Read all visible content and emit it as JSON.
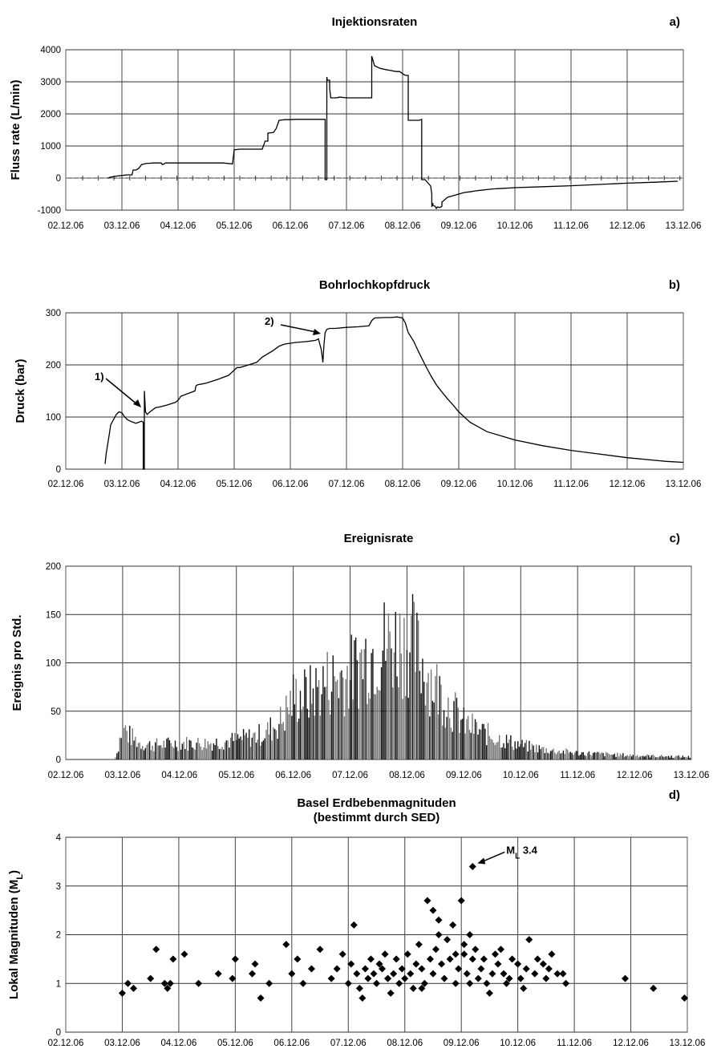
{
  "chart_data": [
    {
      "type": "line",
      "panel_letter": "a)",
      "title": "Injektionsraten",
      "ylabel": "Fluss rate (L/min)",
      "xlabel": "",
      "x_unit": "days after 02.12.06 00:00 (ticks = dates)",
      "xticks": [
        "02.12.06",
        "03.12.06",
        "04.12.06",
        "05.12.06",
        "06.12.06",
        "07.12.06",
        "08.12.06",
        "09.12.06",
        "10.12.06",
        "11.12.06",
        "12.12.06",
        "13.12.06"
      ],
      "xlim": [
        0,
        11
      ],
      "ylim": [
        -1000,
        4000
      ],
      "yticks": [
        4000,
        3000,
        2000,
        1000,
        0,
        -1000
      ],
      "ytick_labels": [
        "4000",
        "3000",
        "2000",
        "1000",
        "0",
        "-1000"
      ],
      "grid": true,
      "series": [
        {
          "x": [
            0.75,
            0.8,
            0.9,
            1.0,
            1.1,
            1.18,
            1.2,
            1.25,
            1.3,
            1.35,
            1.4,
            1.45,
            1.5,
            1.55,
            1.6,
            1.65,
            1.7,
            1.72,
            1.75,
            1.78,
            1.8,
            1.85,
            2.0,
            2.2,
            2.4,
            2.6,
            2.8,
            2.97,
            3.0,
            3.1,
            3.3,
            3.5,
            3.55,
            3.6,
            3.6,
            3.7,
            3.75,
            3.8,
            3.85,
            3.9,
            3.95,
            4.0,
            4.1,
            4.3,
            4.5,
            4.62,
            4.62,
            4.65,
            4.65,
            4.66,
            4.7,
            4.7,
            4.72,
            4.8,
            4.84,
            4.86,
            4.86,
            4.9,
            5.0,
            5.2,
            5.4,
            5.45,
            5.45,
            5.5,
            5.6,
            5.7,
            5.8,
            5.85,
            5.9,
            5.95,
            6.0,
            6.05,
            6.1,
            6.1,
            6.2,
            6.3,
            6.34,
            6.34,
            6.4,
            6.5,
            6.52,
            6.52,
            6.54,
            6.54,
            6.58,
            6.6,
            6.62,
            6.66,
            6.7,
            6.7,
            6.8,
            6.9,
            7.0,
            7.1,
            7.2,
            7.3,
            7.4,
            7.5,
            7.6,
            7.8,
            8.0,
            8.5,
            9.0,
            9.5,
            10.0,
            10.5,
            10.9
          ],
          "y": [
            0,
            30,
            60,
            80,
            100,
            100,
            250,
            250,
            300,
            420,
            440,
            460,
            460,
            470,
            470,
            470,
            470,
            420,
            440,
            470,
            470,
            470,
            470,
            470,
            470,
            470,
            470,
            440,
            880,
            900,
            900,
            900,
            1150,
            1150,
            1400,
            1420,
            1550,
            1800,
            1810,
            1820,
            1820,
            1820,
            1830,
            1830,
            1830,
            1830,
            -50,
            -50,
            3150,
            3050,
            3050,
            2800,
            2500,
            2500,
            2510,
            2510,
            2520,
            2520,
            2500,
            2500,
            2500,
            2500,
            3800,
            3500,
            3420,
            3380,
            3350,
            3330,
            3320,
            3320,
            3250,
            3200,
            3200,
            1800,
            1800,
            1800,
            1830,
            -50,
            -50,
            -250,
            -500,
            -900,
            -780,
            -850,
            -880,
            -950,
            -900,
            -920,
            -880,
            -750,
            -600,
            -550,
            -500,
            -450,
            -430,
            -400,
            -380,
            -360,
            -340,
            -320,
            -300,
            -270,
            -240,
            -200,
            -160,
            -130,
            -100
          ]
        }
      ]
    },
    {
      "type": "line",
      "panel_letter": "b)",
      "title": "Bohrlochkopfdruck",
      "ylabel": "Druck  (bar)",
      "xlabel": "",
      "x_unit": "days after 02.12.06 00:00 (ticks = dates)",
      "xticks": [
        "02.12.06",
        "03.12.06",
        "04.12.06",
        "05.12.06",
        "06.12.06",
        "07.12.06",
        "08.12.06",
        "09.12.06",
        "10.12.06",
        "11.12.06",
        "12.12.06",
        "13.12.06"
      ],
      "xlim": [
        0,
        11
      ],
      "ylim": [
        0,
        300
      ],
      "yticks": [
        300,
        200,
        100,
        0
      ],
      "ytick_labels": [
        "300",
        "200",
        "100",
        "0"
      ],
      "grid": true,
      "annotations": [
        "1)",
        "2)"
      ],
      "series": [
        {
          "x": [
            0.7,
            0.72,
            0.75,
            0.78,
            0.8,
            0.85,
            0.9,
            0.95,
            1.0,
            1.05,
            1.1,
            1.15,
            1.2,
            1.25,
            1.3,
            1.35,
            1.38,
            1.38,
            1.4,
            1.4,
            1.42,
            1.45,
            1.5,
            1.6,
            1.7,
            1.8,
            1.95,
            2.0,
            2.05,
            2.3,
            2.32,
            2.35,
            2.5,
            2.7,
            2.9,
            2.95,
            3.0,
            3.05,
            3.1,
            3.2,
            3.4,
            3.5,
            3.7,
            3.8,
            3.9,
            4.1,
            4.3,
            4.45,
            4.5,
            4.55,
            4.58,
            4.6,
            4.62,
            4.65,
            4.7,
            4.8,
            5.0,
            5.2,
            5.4,
            5.45,
            5.5,
            5.7,
            5.8,
            5.9,
            6.0,
            6.05,
            6.1,
            6.2,
            6.25,
            6.3,
            6.4,
            6.5,
            6.6,
            6.7,
            6.8,
            6.9,
            7.0,
            7.2,
            7.5,
            8.0,
            8.5,
            9.0,
            9.5,
            10.0,
            10.5,
            10.7,
            11.0
          ],
          "y": [
            10,
            30,
            50,
            70,
            85,
            95,
            105,
            110,
            108,
            100,
            95,
            92,
            90,
            88,
            90,
            92,
            90,
            0,
            0,
            150,
            110,
            105,
            110,
            118,
            120,
            123,
            128,
            132,
            140,
            150,
            160,
            162,
            165,
            172,
            180,
            185,
            190,
            195,
            195,
            198,
            205,
            215,
            228,
            236,
            240,
            243,
            245,
            247,
            250,
            230,
            205,
            240,
            262,
            268,
            270,
            270,
            272,
            273,
            275,
            285,
            290,
            291,
            291,
            292,
            290,
            280,
            262,
            245,
            233,
            222,
            200,
            180,
            162,
            148,
            135,
            123,
            110,
            90,
            72,
            56,
            45,
            36,
            29,
            22,
            17,
            15,
            13
          ]
        }
      ]
    },
    {
      "type": "bar",
      "panel_letter": "c)",
      "title": "Ereignisrate",
      "ylabel": "Ereignis pro Std.",
      "xlabel": "",
      "x_unit": "days after 02.12.06 00:00 (ticks = dates)",
      "xticks": [
        "02.12.06",
        "03.12.06",
        "04.12.06",
        "05.12.06",
        "06.12.06",
        "07.12.06",
        "08.12.06",
        "09.12.06",
        "10.12.06",
        "11.12.06",
        "12.12.06",
        "13.12.06"
      ],
      "xlim": [
        0,
        11
      ],
      "ylim": [
        0,
        200
      ],
      "yticks": [
        200,
        150,
        100,
        50,
        0
      ],
      "ytick_labels": [
        "200",
        "150",
        "100",
        "50",
        "0"
      ],
      "grid": true,
      "envelope": {
        "x": [
          0.85,
          0.9,
          1.0,
          1.1,
          1.3,
          1.5,
          2.0,
          2.5,
          3.0,
          3.3,
          3.5,
          3.8,
          4.0,
          4.3,
          4.6,
          5.0,
          5.3,
          5.6,
          5.9,
          6.1,
          6.3,
          6.6,
          7.0,
          7.5,
          8.0,
          8.5,
          9.0,
          9.5,
          10.0,
          10.5,
          11.0
        ],
        "y": [
          0,
          10,
          52,
          38,
          25,
          22,
          25,
          25,
          30,
          35,
          40,
          60,
          95,
          100,
          120,
          130,
          160,
          175,
          180,
          175,
          140,
          100,
          55,
          35,
          22,
          14,
          10,
          8,
          6,
          5,
          4
        ]
      }
    },
    {
      "type": "scatter",
      "panel_letter": "d)",
      "title": "Basel Erdbebenmagnituden",
      "subtitle": "(bestimmt durch SED)",
      "ylabel": "Lokal Magnituden (M",
      "ylabel_sub": "L",
      "ylabel_end": ")",
      "xlabel": "",
      "x_unit": "days after 02.12.06 00:00 (ticks = dates)",
      "xticks": [
        "02.12.06",
        "03.12.06",
        "04.12.06",
        "05.12.06",
        "06.12.06",
        "07.12.06",
        "08.12.06",
        "09.12.06",
        "10.12.06",
        "11.12.06",
        "12.12.06",
        "13.12.06"
      ],
      "xlim": [
        0,
        11
      ],
      "ylim": [
        0,
        4
      ],
      "yticks": [
        4,
        3,
        2,
        1,
        0
      ],
      "ytick_labels": [
        "4",
        "3",
        "2",
        "1",
        "0"
      ],
      "grid": true,
      "annotation": {
        "text_main": "M",
        "text_sub": "L",
        "text_end": " 3.4",
        "x": 7.2,
        "y": 3.4
      },
      "points": {
        "x": [
          1.0,
          1.1,
          1.2,
          1.5,
          1.6,
          1.75,
          1.8,
          1.85,
          1.9,
          2.1,
          2.35,
          2.7,
          2.95,
          3.0,
          3.3,
          3.35,
          3.45,
          3.6,
          3.9,
          4.0,
          4.1,
          4.2,
          4.35,
          4.5,
          4.7,
          4.8,
          4.9,
          5.0,
          5.05,
          5.1,
          5.15,
          5.2,
          5.25,
          5.3,
          5.35,
          5.4,
          5.45,
          5.5,
          5.55,
          5.6,
          5.65,
          5.7,
          5.75,
          5.8,
          5.85,
          5.9,
          5.95,
          6.0,
          6.05,
          6.1,
          6.15,
          6.2,
          6.25,
          6.3,
          6.35,
          6.4,
          6.45,
          6.5,
          6.55,
          6.6,
          6.65,
          6.7,
          6.75,
          6.8,
          6.85,
          6.9,
          6.95,
          7.0,
          7.05,
          7.1,
          7.15,
          7.2,
          7.25,
          7.3,
          7.35,
          7.4,
          7.45,
          7.5,
          7.55,
          7.6,
          7.65,
          7.7,
          7.75,
          7.8,
          7.85,
          7.9,
          8.0,
          8.05,
          8.1,
          8.15,
          8.2,
          8.3,
          8.35,
          8.45,
          8.5,
          8.55,
          8.6,
          8.7,
          8.8,
          8.85,
          6.5,
          6.6,
          7.05,
          7.15,
          7.2,
          9.9,
          10.4,
          6.9,
          6.3,
          5.7,
          10.95
        ],
        "y": [
          0.8,
          1.0,
          0.9,
          1.1,
          1.7,
          1.0,
          0.9,
          1.0,
          1.5,
          1.6,
          1.0,
          1.2,
          1.1,
          1.5,
          1.2,
          1.4,
          0.7,
          1.0,
          1.8,
          1.2,
          1.5,
          1.0,
          1.3,
          1.7,
          1.1,
          1.3,
          1.6,
          1.0,
          1.4,
          2.2,
          1.2,
          0.9,
          0.7,
          1.3,
          1.1,
          1.5,
          1.2,
          1.0,
          1.4,
          1.3,
          1.6,
          1.1,
          0.8,
          1.2,
          1.5,
          1.0,
          1.3,
          1.1,
          1.6,
          1.2,
          0.9,
          1.4,
          1.8,
          1.3,
          1.0,
          2.7,
          1.5,
          1.2,
          1.7,
          2.3,
          1.4,
          1.1,
          1.9,
          1.5,
          2.2,
          1.0,
          1.3,
          2.7,
          1.6,
          1.2,
          1.0,
          3.4,
          1.7,
          1.1,
          1.3,
          1.5,
          1.0,
          0.8,
          1.2,
          1.6,
          1.4,
          1.7,
          1.2,
          1.0,
          1.1,
          1.5,
          1.4,
          1.1,
          0.9,
          1.3,
          1.9,
          1.2,
          1.5,
          1.4,
          1.1,
          1.3,
          1.6,
          1.2,
          1.2,
          1.0,
          2.5,
          2.0,
          1.8,
          2.0,
          1.5,
          1.1,
          0.9,
          1.6,
          0.9,
          1.1,
          0.7
        ]
      }
    }
  ]
}
